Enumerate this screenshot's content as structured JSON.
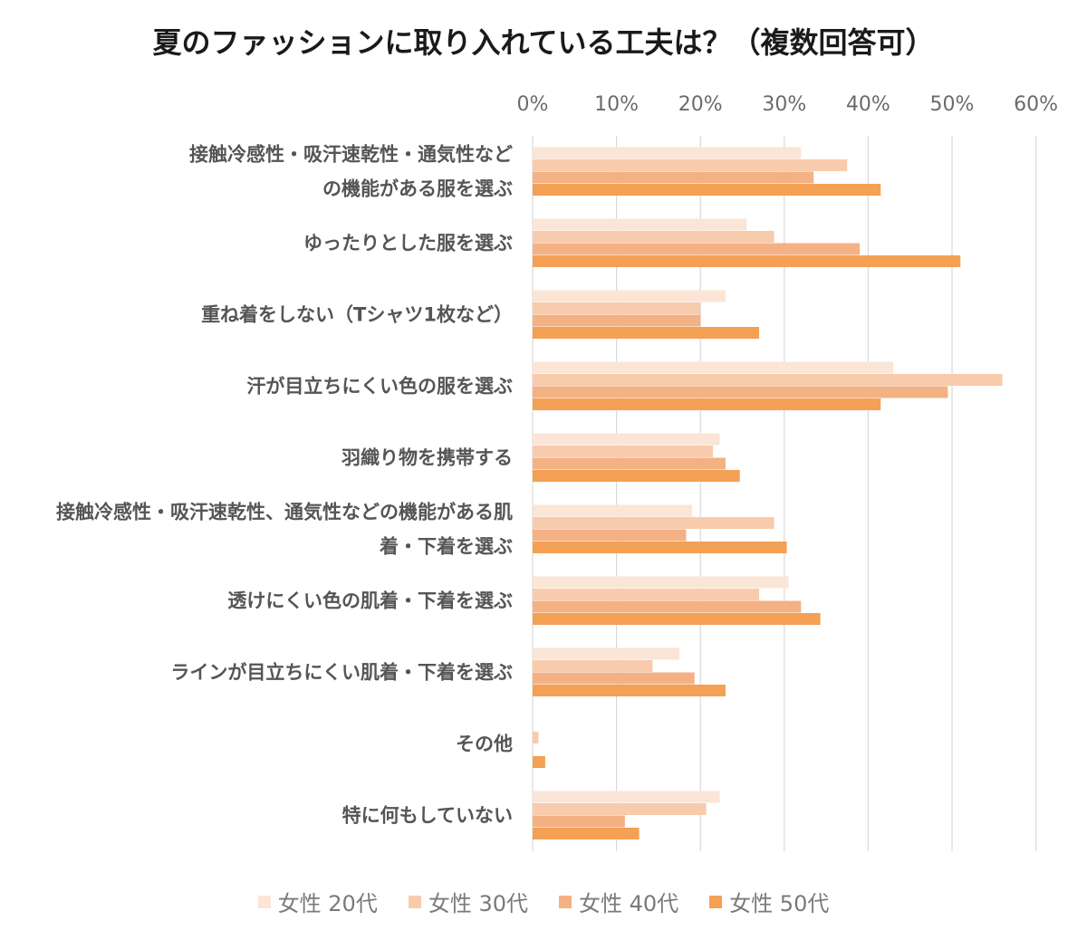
{
  "chart_data": {
    "type": "bar",
    "orientation": "horizontal",
    "title": "夏のファッションに取り入れている工夫は？（複数回答可）",
    "xlim": [
      0,
      60
    ],
    "x_ticks": [
      "0%",
      "10%",
      "20%",
      "30%",
      "40%",
      "50%",
      "60%"
    ],
    "grid": true,
    "legend_position": "bottom",
    "categories": [
      [
        "接触冷感性・吸汗速乾性・通気性など",
        "の機能がある服を選ぶ"
      ],
      [
        "ゆったりとした服を選ぶ"
      ],
      [
        "重ね着をしない（Tシャツ1枚など）"
      ],
      [
        "汗が目立ちにくい色の服を選ぶ"
      ],
      [
        "羽織り物を携帯する"
      ],
      [
        "接触冷感性・吸汗速乾性、通気性などの機能がある肌",
        "着・下着を選ぶ"
      ],
      [
        "透けにくい色の肌着・下着を選ぶ"
      ],
      [
        "ラインが目立ちにくい肌着・下着を選ぶ"
      ],
      [
        "その他"
      ],
      [
        "特に何もしていない"
      ]
    ],
    "series": [
      {
        "name": "女性 20代",
        "color": "#fbe5d6",
        "values": [
          32,
          25.5,
          23,
          43,
          22.3,
          19,
          30.5,
          17.5,
          0,
          22.3
        ]
      },
      {
        "name": "女性 30代",
        "color": "#f8cbad",
        "values": [
          37.5,
          28.8,
          20,
          56,
          21.5,
          28.8,
          27,
          14.3,
          0.7,
          20.7
        ]
      },
      {
        "name": "女性 40代",
        "color": "#f4b183",
        "values": [
          33.5,
          39,
          20,
          49.5,
          23,
          18.3,
          32,
          19.3,
          0,
          11
        ]
      },
      {
        "name": "女性 50代",
        "color": "#f4a055",
        "values": [
          41.5,
          51,
          27,
          41.5,
          24.7,
          30.3,
          34.3,
          23,
          1.5,
          12.7
        ]
      }
    ]
  }
}
